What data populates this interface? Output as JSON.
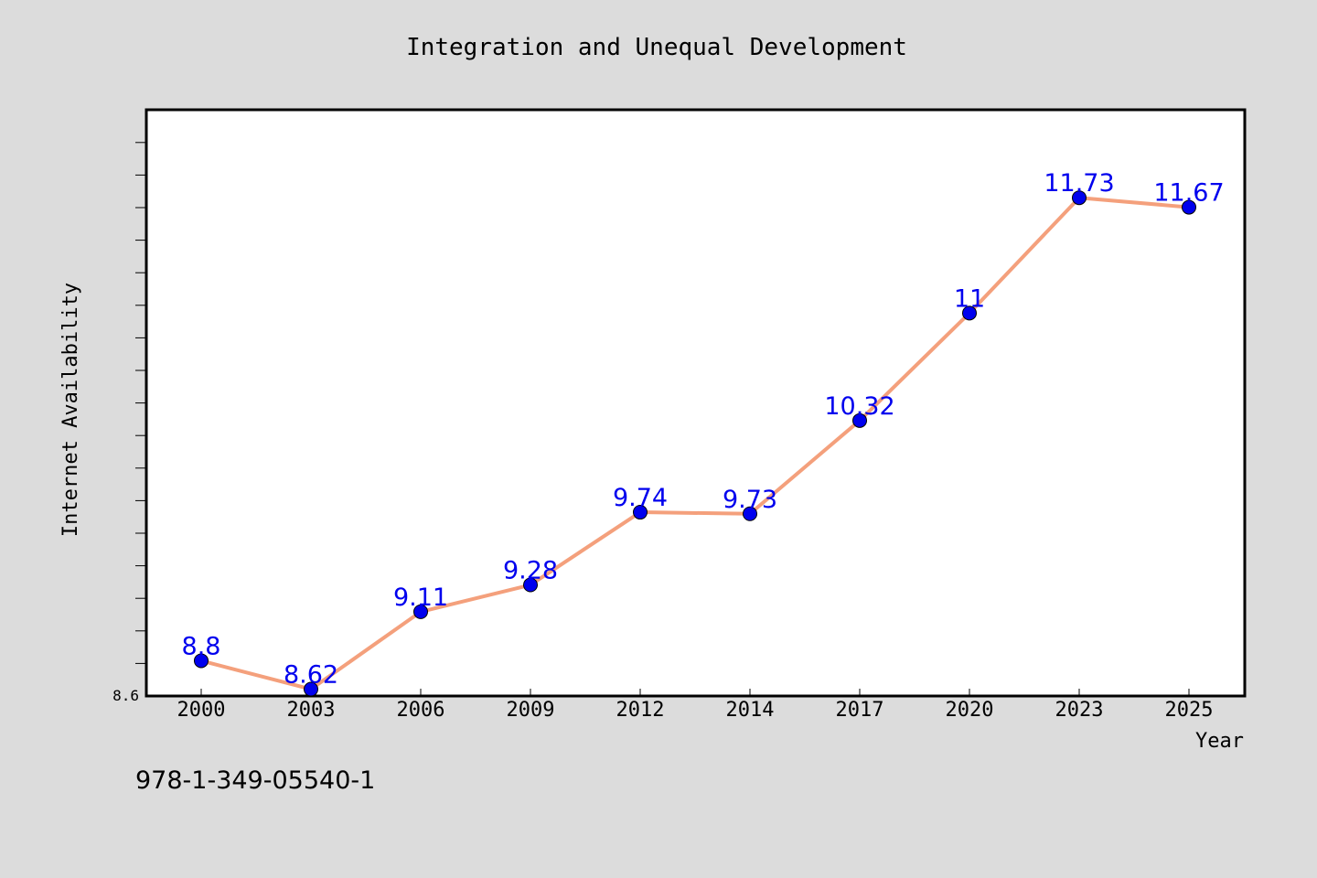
{
  "chart_data": {
    "type": "line",
    "title": "Integration and Unequal Development",
    "xlabel": "Year",
    "ylabel": "Internet Availability",
    "categories": [
      "2000",
      "2003",
      "2006",
      "2009",
      "2012",
      "2014",
      "2017",
      "2020",
      "2023",
      "2025"
    ],
    "series": [
      {
        "values": [
          8.8,
          8.62,
          9.11,
          9.28,
          9.74,
          9.73,
          10.32,
          11,
          11.73,
          11.67
        ],
        "data_labels": [
          "8.8",
          "8.62",
          "9.11",
          "9.28",
          "9.74",
          "9.73",
          "10.32",
          "11",
          "11.73",
          "11.67"
        ]
      }
    ],
    "ylim": [
      8.6,
      12.2
    ],
    "y_tick_labels": [
      "8.6"
    ],
    "grid": false,
    "legend": "none",
    "colors": {
      "line": "#f4a07c",
      "marker": "#0000ee",
      "data_label": "#0000ee",
      "page_background": "#dcdcdc",
      "plot_background": "#ffffff"
    }
  },
  "annotation": {
    "text": "978-1-349-05540-1"
  }
}
